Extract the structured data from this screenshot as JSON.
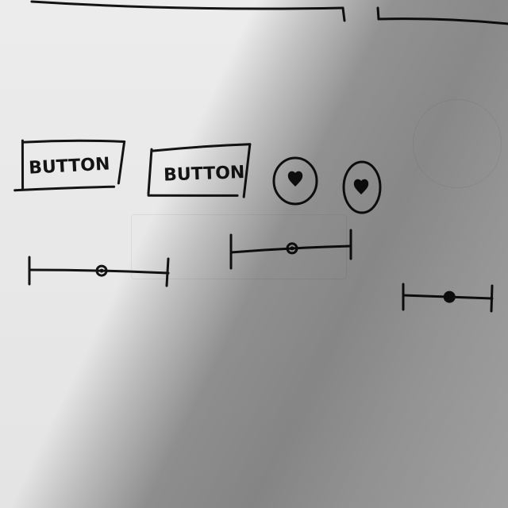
{
  "sketch": {
    "buttons": [
      {
        "label": "BUTTON"
      },
      {
        "label": "BUTTON"
      }
    ],
    "icon_buttons": [
      {
        "icon": "heart-icon"
      },
      {
        "icon": "heart-icon"
      }
    ],
    "sliders": [
      {
        "value": 0.52
      },
      {
        "value": 0.51
      },
      {
        "value": 0.52
      }
    ]
  },
  "colors": {
    "ink": "#141414",
    "paper": "#ececec"
  }
}
